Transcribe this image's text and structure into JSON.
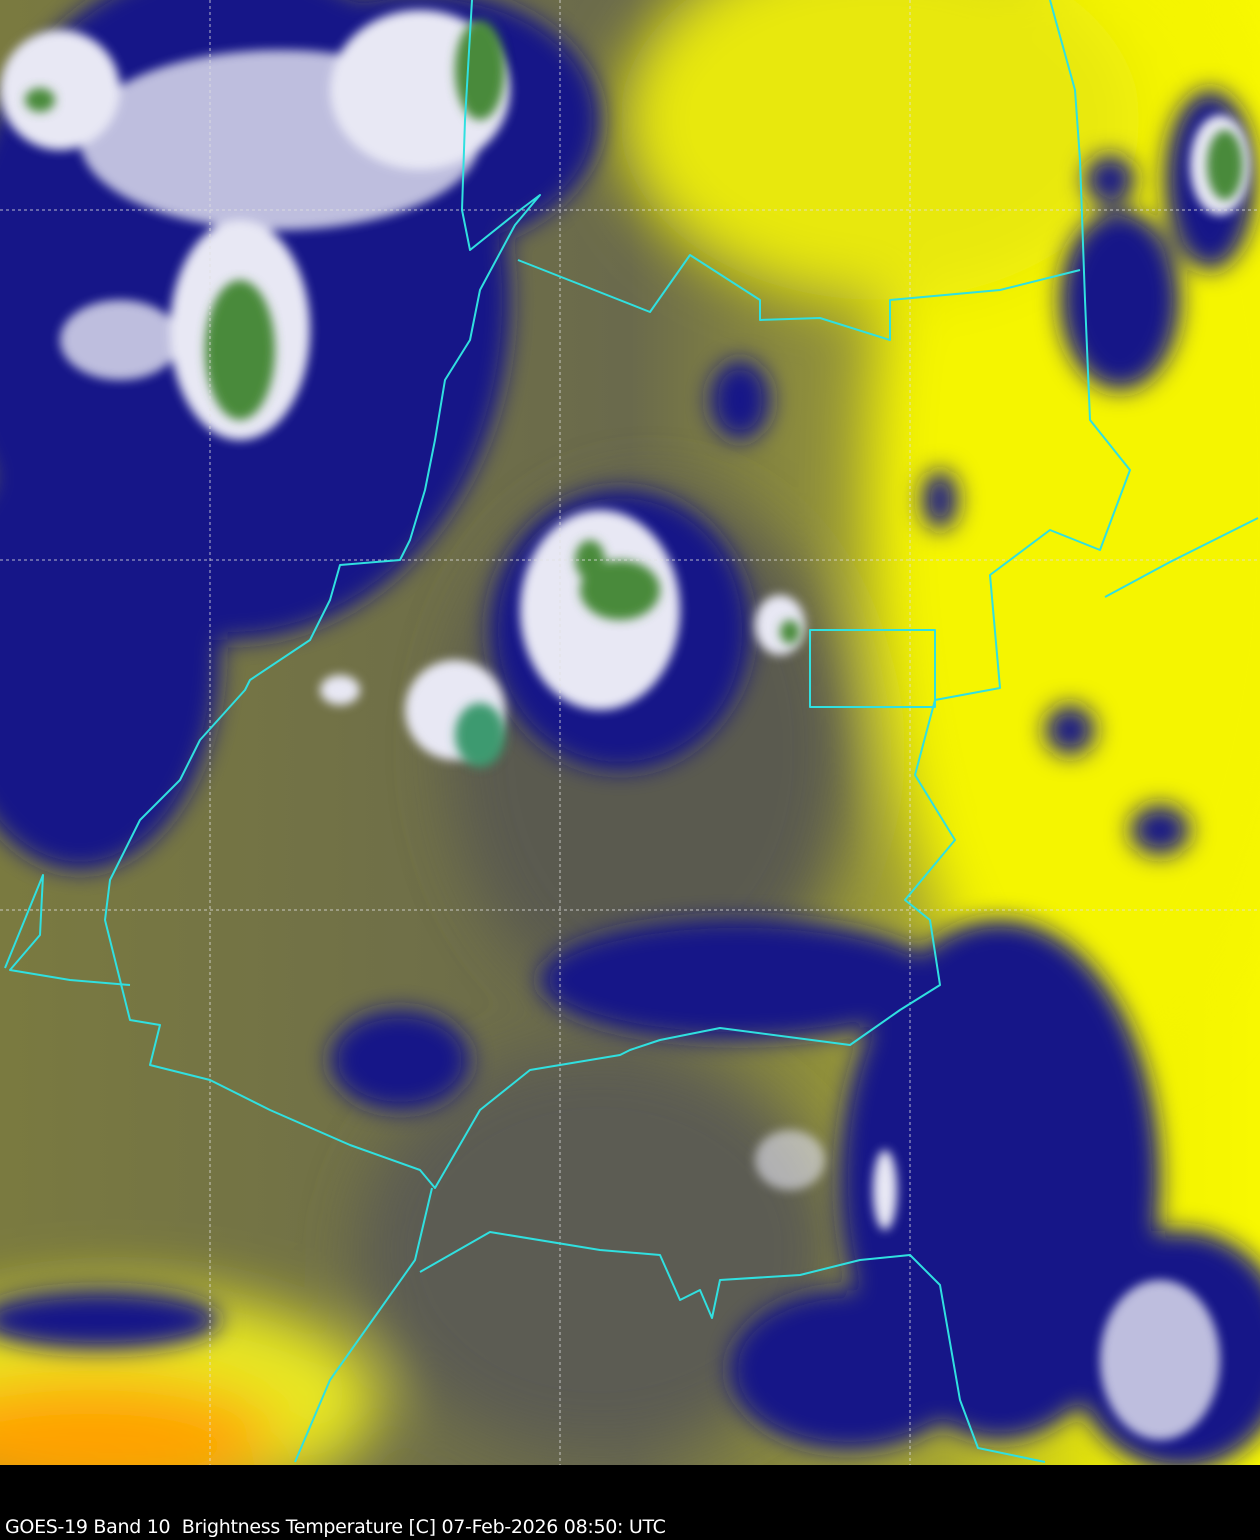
{
  "caption": {
    "text": "GOES-19 Band 10  Brightness Temperature [C] 07-Feb-2026 08:50: UTC"
  },
  "colors": {
    "warm_clear": "#f5f500",
    "mid": "#6e6e48",
    "cold_cloud": "#101080",
    "coldest": "#4a8a3a",
    "borders": "#30e0e0",
    "hot": "#ff9a00"
  }
}
